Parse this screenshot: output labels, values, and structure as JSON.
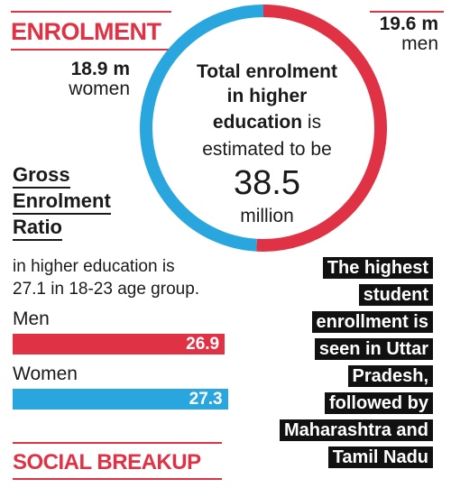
{
  "headings": {
    "enrolment": "ENROLMENT",
    "social": "SOCIAL BREAKUP"
  },
  "donut": {
    "women_value": "18.9 m",
    "women_label": "women",
    "men_value": "19.6 m",
    "men_label": "men",
    "center": {
      "line1": "Total enrolment",
      "line2": "in higher",
      "line3_bold": "education",
      "line3_rest": " is",
      "line4": "estimated to be",
      "value": "38.5",
      "unit": "million"
    }
  },
  "ger": {
    "title_lines": [
      "Gross",
      "Enrolment",
      "Ratio"
    ],
    "description_lines": [
      "in higher education is",
      "27.1 in 18-23 age group."
    ]
  },
  "note": {
    "lines": [
      "The highest",
      "student",
      "enrollment is",
      "seen in Uttar",
      "Pradesh,",
      "followed by",
      "Maharashtra and",
      "Tamil Nadu"
    ]
  },
  "colors": {
    "men": "#e03245",
    "women": "#2aa6de",
    "accent": "#e03245",
    "note_bg": "#111111"
  },
  "chart_data": [
    {
      "type": "pie",
      "categories": [
        "women",
        "men"
      ],
      "values": [
        18.9,
        19.6
      ],
      "units": "million"
    },
    {
      "type": "bar",
      "categories": [
        "Men",
        "Women"
      ],
      "values": [
        26.9,
        27.3
      ],
      "xlim": [
        0,
        28.6
      ]
    }
  ]
}
